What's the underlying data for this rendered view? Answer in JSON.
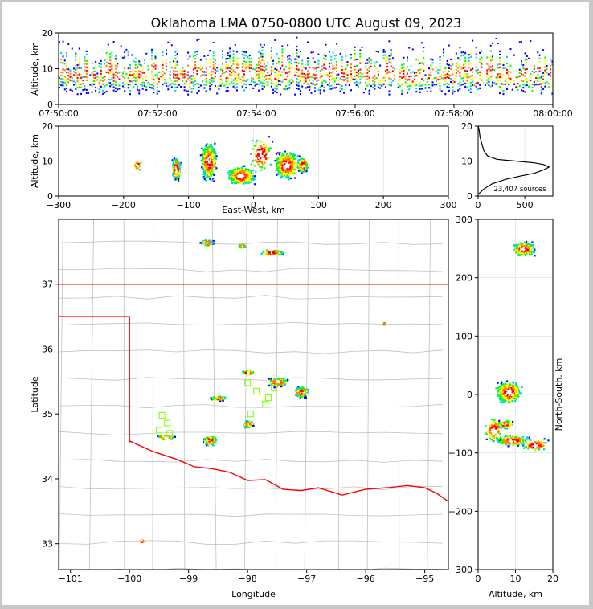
{
  "title": "Oklahoma LMA 0750-0800 UTC August 09, 2023",
  "colors": {
    "scale": [
      "#0000ff",
      "#00ccff",
      "#00ff00",
      "#ffff00",
      "#ff8800",
      "#ff0000",
      "#ffffff"
    ],
    "state_border": "#ff0000",
    "county_lines": "#c0c0c0",
    "station_marker": "#88ff22"
  },
  "chart_data": [
    {
      "id": "time_height",
      "type": "scatter",
      "xlabel": "",
      "ylabel": "Altitude, km",
      "xlim": [
        0,
        600
      ],
      "ylim": [
        0,
        20
      ],
      "x_ticks": [
        {
          "v": 0,
          "label": "07:50:00"
        },
        {
          "v": 120,
          "label": "07:52:00"
        },
        {
          "v": 240,
          "label": "07:54:00"
        },
        {
          "v": 360,
          "label": "07:56:00"
        },
        {
          "v": 480,
          "label": "07:58:00"
        },
        {
          "v": 600,
          "label": "08:00:00"
        }
      ],
      "y_ticks": [
        0,
        10,
        20
      ]
    },
    {
      "id": "ew_alt",
      "type": "scatter",
      "xlabel": "East-West, km",
      "ylabel": "Altitude, km",
      "xlim": [
        -300,
        300
      ],
      "ylim": [
        0,
        20
      ],
      "x_ticks": [
        -300,
        -200,
        -100,
        0,
        100,
        200,
        300
      ],
      "y_ticks": [
        0,
        10,
        20
      ],
      "clusters": [
        {
          "x": -120,
          "y": 8
        },
        {
          "x": -70,
          "y": 9
        },
        {
          "x": -20,
          "y": 6
        },
        {
          "x": 50,
          "y": 9
        },
        {
          "x": 75,
          "y": 9
        }
      ]
    },
    {
      "id": "alt_hist",
      "type": "line",
      "xlabel": "",
      "ylabel": "",
      "xlim": [
        0,
        800
      ],
      "ylim": [
        0,
        20
      ],
      "x_ticks": [
        0,
        500
      ],
      "y_ticks": [
        0,
        10,
        20
      ],
      "annotation": "23,407 sources",
      "series": [
        {
          "x": [
            0,
            30,
            60,
            150,
            300,
            450,
            600,
            700,
            760,
            700,
            600,
            400,
            200,
            100,
            60,
            40,
            20,
            10,
            0
          ],
          "y": [
            0.5,
            1.2,
            2,
            3.5,
            4.8,
            5.7,
            6.5,
            7.5,
            8.3,
            9,
            9.5,
            10,
            10.5,
            11.5,
            13,
            15,
            17,
            19,
            20
          ]
        }
      ]
    },
    {
      "id": "plan_view",
      "type": "scatter",
      "xlabel": "Longitude",
      "ylabel": "Latitude",
      "xlim": [
        -101.2,
        -94.6
      ],
      "ylim": [
        32.6,
        38
      ],
      "x_ticks": [
        {
          "v": -101,
          "label": "−101"
        },
        {
          "v": -100,
          "label": "−100"
        },
        {
          "v": -99,
          "label": "−99"
        },
        {
          "v": -98,
          "label": "−98"
        },
        {
          "v": -97,
          "label": "−97"
        },
        {
          "v": -96,
          "label": "−96"
        },
        {
          "v": -95,
          "label": "−95"
        }
      ],
      "y_ticks": [
        33,
        34,
        35,
        36,
        37
      ],
      "clusters": [
        {
          "lon": -98.7,
          "lat": 37.65
        },
        {
          "lon": -98.1,
          "lat": 37.6
        },
        {
          "lon": -97.6,
          "lat": 37.5
        },
        {
          "lon": -95.7,
          "lat": 36.4
        },
        {
          "lon": -98.0,
          "lat": 35.65
        },
        {
          "lon": -97.5,
          "lat": 35.5
        },
        {
          "lon": -97.1,
          "lat": 35.35
        },
        {
          "lon": -98.5,
          "lat": 35.25
        },
        {
          "lon": -98.0,
          "lat": 34.85
        },
        {
          "lon": -98.65,
          "lat": 34.6
        },
        {
          "lon": -99.4,
          "lat": 34.65
        },
        {
          "lon": -99.8,
          "lat": 33.05
        }
      ],
      "stations": [
        {
          "lon": -99.45,
          "lat": 34.98
        },
        {
          "lon": -99.36,
          "lat": 34.86
        },
        {
          "lon": -99.5,
          "lat": 34.75
        },
        {
          "lon": -99.32,
          "lat": 34.7
        },
        {
          "lon": -98.0,
          "lat": 35.48
        },
        {
          "lon": -97.65,
          "lat": 35.25
        },
        {
          "lon": -97.55,
          "lat": 35.4
        },
        {
          "lon": -97.7,
          "lat": 35.15
        },
        {
          "lon": -97.95,
          "lat": 35.0
        },
        {
          "lon": -97.85,
          "lat": 35.35
        }
      ]
    },
    {
      "id": "alt_ns",
      "type": "scatter",
      "xlabel": "Altitude, km",
      "ylabel": "North-South, km",
      "xlim": [
        0,
        20
      ],
      "ylim": [
        -300,
        300
      ],
      "x_ticks": [
        0,
        10,
        20
      ],
      "y_ticks": [
        -300,
        -200,
        -100,
        0,
        100,
        200,
        300
      ],
      "clusters": [
        {
          "x": 12,
          "y": 250
        },
        {
          "x": 8,
          "y": 5
        },
        {
          "x": 7,
          "y": -50
        },
        {
          "x": 9,
          "y": -78
        }
      ]
    }
  ]
}
